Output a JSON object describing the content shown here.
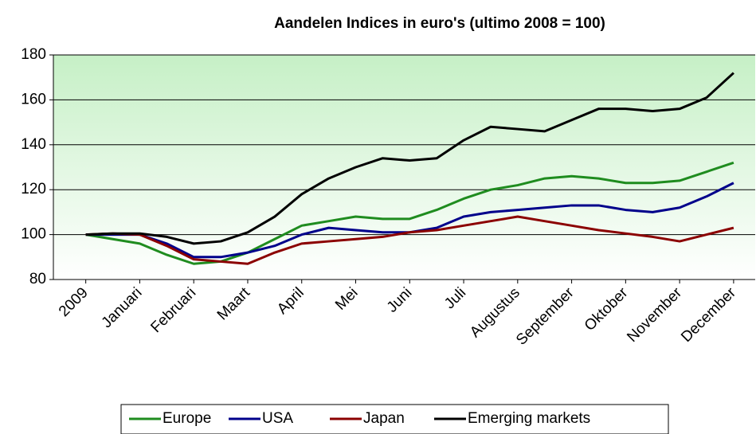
{
  "chart_data": {
    "type": "line",
    "title": "Aandelen Indices in euro's (ultimo 2008 = 100)",
    "x": [
      0,
      0.5,
      1,
      1.5,
      2,
      2.5,
      3,
      3.5,
      4,
      4.5,
      5,
      5.5,
      6,
      6.5,
      7,
      7.5,
      8,
      8.5,
      9,
      9.5,
      10,
      10.5,
      11,
      11.5,
      12
    ],
    "xlim": [
      -0.6,
      12.4
    ],
    "xticks": [
      {
        "value": 0,
        "label": "2009"
      },
      {
        "value": 1,
        "label": "Januari"
      },
      {
        "value": 2,
        "label": "Februari"
      },
      {
        "value": 3,
        "label": "Maart"
      },
      {
        "value": 4,
        "label": "April"
      },
      {
        "value": 5,
        "label": "Mei"
      },
      {
        "value": 6,
        "label": "Juni"
      },
      {
        "value": 7,
        "label": "Juli"
      },
      {
        "value": 8,
        "label": "Augustus"
      },
      {
        "value": 9,
        "label": "September"
      },
      {
        "value": 10,
        "label": "Oktober"
      },
      {
        "value": 11,
        "label": "November"
      },
      {
        "value": 12,
        "label": "December"
      }
    ],
    "ylim": [
      80,
      180
    ],
    "yticks": [
      80,
      100,
      120,
      140,
      160,
      180
    ],
    "grid": true,
    "series": [
      {
        "name": "Europe",
        "color": "#1f8c1f",
        "values": [
          100,
          98,
          96,
          91,
          87,
          88,
          92,
          98,
          104,
          106,
          108,
          107,
          107,
          111,
          116,
          120,
          122,
          125,
          126,
          125,
          123,
          123,
          124,
          128,
          132
        ]
      },
      {
        "name": "USA",
        "color": "#00008b",
        "values": [
          100,
          100,
          100,
          96,
          90,
          90,
          92,
          95,
          100,
          103,
          102,
          101,
          101,
          103,
          108,
          110,
          111,
          112,
          113,
          113,
          111,
          110,
          112,
          117,
          123
        ]
      },
      {
        "name": "Japan",
        "color": "#8b0000",
        "values": [
          100,
          100.5,
          100,
          95,
          89,
          88,
          87,
          92,
          96,
          97,
          98,
          99,
          101,
          102,
          104,
          106,
          108,
          106,
          104,
          102,
          100.5,
          99,
          97,
          100,
          103
        ]
      },
      {
        "name": "Emerging markets",
        "color": "#000000",
        "values": [
          100,
          100.5,
          100.5,
          99,
          96,
          97,
          101,
          108,
          118,
          125,
          130,
          134,
          133,
          134,
          142,
          148,
          147,
          146,
          151,
          156,
          156,
          155,
          156,
          161,
          172
        ]
      }
    ]
  }
}
